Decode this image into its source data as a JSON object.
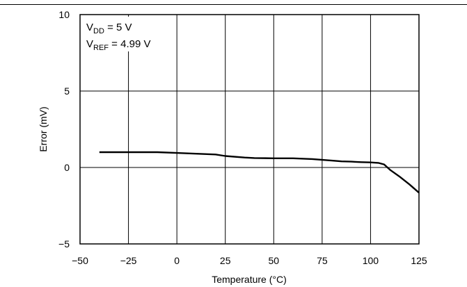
{
  "chart_data": {
    "type": "line",
    "xlabel": "Temperature (°C)",
    "ylabel": "Error (mV)",
    "xlim": [
      -50,
      125
    ],
    "ylim": [
      -5,
      10
    ],
    "x_ticks": [
      "−50",
      "−25",
      "0",
      "25",
      "50",
      "75",
      "100",
      "125"
    ],
    "y_ticks": [
      "−5",
      "0",
      "5",
      "10"
    ],
    "x_tick_values": [
      -50,
      -25,
      0,
      25,
      50,
      75,
      100,
      125
    ],
    "y_tick_values": [
      -5,
      0,
      5,
      10
    ],
    "grid": true,
    "annotations": {
      "vdd": {
        "symbol": "V",
        "subscript": "DD",
        "rest": " = 5 V"
      },
      "vref": {
        "symbol": "V",
        "subscript": "REF",
        "rest": " = 4.99 V"
      }
    },
    "series": [
      {
        "x": [
          -40,
          -25,
          -10,
          0,
          10,
          20,
          25,
          35,
          40,
          50,
          60,
          70,
          80,
          85,
          90,
          95,
          100,
          104,
          107,
          110,
          115,
          120,
          125
        ],
        "y": [
          1.0,
          1.0,
          1.0,
          0.95,
          0.9,
          0.85,
          0.75,
          0.65,
          0.62,
          0.6,
          0.6,
          0.55,
          0.45,
          0.4,
          0.38,
          0.35,
          0.33,
          0.3,
          0.2,
          -0.15,
          -0.6,
          -1.1,
          -1.65
        ]
      }
    ]
  }
}
